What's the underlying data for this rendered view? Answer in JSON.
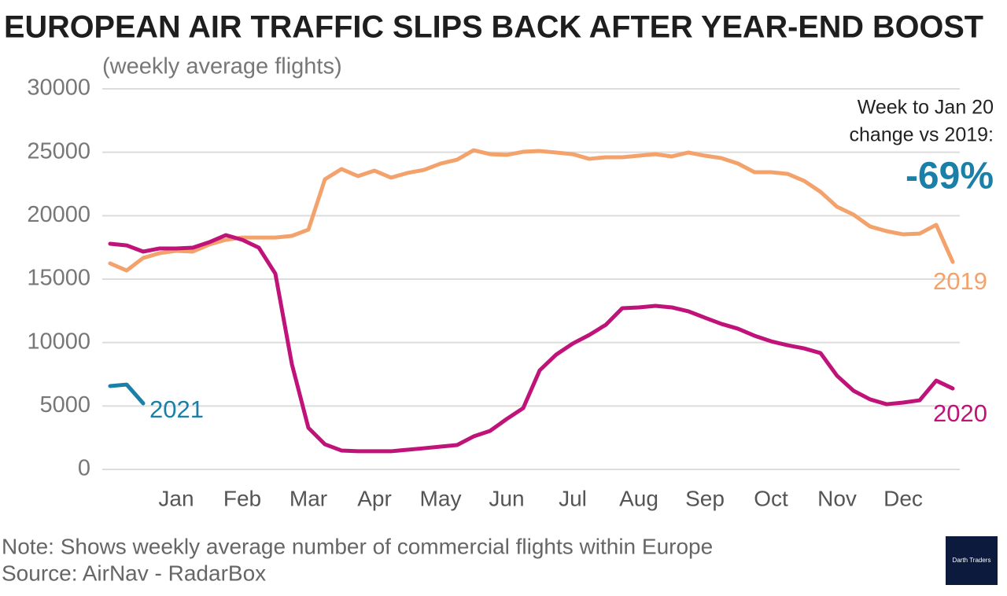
{
  "chart_data": {
    "type": "line",
    "title": "EUROPEAN AIR TRAFFIC SLIPS BACK AFTER YEAR-END BOOST",
    "subtitle": "(weekly average flights)",
    "x": [
      1,
      2,
      3,
      4,
      5,
      6,
      7,
      8,
      9,
      10,
      11,
      12,
      13,
      14,
      15,
      16,
      17,
      18,
      19,
      20,
      21,
      22,
      23,
      24,
      25,
      26,
      27,
      28,
      29,
      30,
      31,
      32,
      33,
      34,
      35,
      36,
      37,
      38,
      39,
      40,
      41,
      42,
      43,
      44,
      45,
      46,
      47,
      48,
      49,
      50,
      51,
      52
    ],
    "xlim": [
      1,
      52
    ],
    "xticks": [
      {
        "value": 5,
        "label": "Jan"
      },
      {
        "value": 9,
        "label": "Feb"
      },
      {
        "value": 13,
        "label": "Mar"
      },
      {
        "value": 17,
        "label": "Apr"
      },
      {
        "value": 21,
        "label": "May"
      },
      {
        "value": 25,
        "label": "Jun"
      },
      {
        "value": 29,
        "label": "Jul"
      },
      {
        "value": 33,
        "label": "Aug"
      },
      {
        "value": 37,
        "label": "Sep"
      },
      {
        "value": 41,
        "label": "Oct"
      },
      {
        "value": 45,
        "label": "Nov"
      },
      {
        "value": 49,
        "label": "Dec"
      }
    ],
    "ylim": [
      0,
      30000
    ],
    "yticks": [
      0,
      5000,
      10000,
      15000,
      20000,
      25000,
      30000
    ],
    "grid": true,
    "series": [
      {
        "name": "2019",
        "color": "#f4a26c",
        "values": [
          16240,
          15680,
          16670,
          17050,
          17230,
          17170,
          17730,
          18100,
          18280,
          18280,
          18280,
          18410,
          18900,
          22870,
          23680,
          23120,
          23550,
          23000,
          23370,
          23610,
          24110,
          24420,
          25160,
          24850,
          24790,
          25040,
          25100,
          24980,
          24850,
          24480,
          24610,
          24610,
          24730,
          24850,
          24670,
          24980,
          24730,
          24540,
          24110,
          23430,
          23430,
          23300,
          22750,
          21880,
          20700,
          20080,
          19150,
          18780,
          18530,
          18590,
          19280,
          16360
        ]
      },
      {
        "name": "2020",
        "color": "#c0137a",
        "values": [
          17790,
          17660,
          17170,
          17420,
          17420,
          17480,
          17910,
          18470,
          18100,
          17480,
          15430,
          8300,
          3280,
          1980,
          1490,
          1430,
          1430,
          1430,
          1550,
          1670,
          1800,
          1920,
          2600,
          3040,
          3970,
          4830,
          7810,
          9050,
          9920,
          10600,
          11400,
          12710,
          12770,
          12890,
          12770,
          12460,
          11960,
          11470,
          11090,
          10540,
          10100,
          9790,
          9540,
          9170,
          7380,
          6200,
          5520,
          5140,
          5270,
          5450,
          7000,
          6380
        ]
      },
      {
        "name": "2021",
        "color": "#1a80a8",
        "values": [
          6570,
          6690,
          5210,
          null,
          null,
          null,
          null,
          null,
          null,
          null,
          null,
          null,
          null,
          null,
          null,
          null,
          null,
          null,
          null,
          null,
          null,
          null,
          null,
          null,
          null,
          null,
          null,
          null,
          null,
          null,
          null,
          null,
          null,
          null,
          null,
          null,
          null,
          null,
          null,
          null,
          null,
          null,
          null,
          null,
          null,
          null,
          null,
          null,
          null,
          null,
          null,
          null
        ]
      }
    ],
    "annotations": [
      "Week to Jan 20",
      "change vs 2019:",
      "-69%"
    ],
    "note": "Note: Shows weekly average number of commercial flights within Europe",
    "source": "Source: AirNav - RadarBox",
    "logo": "Darth Traders"
  }
}
